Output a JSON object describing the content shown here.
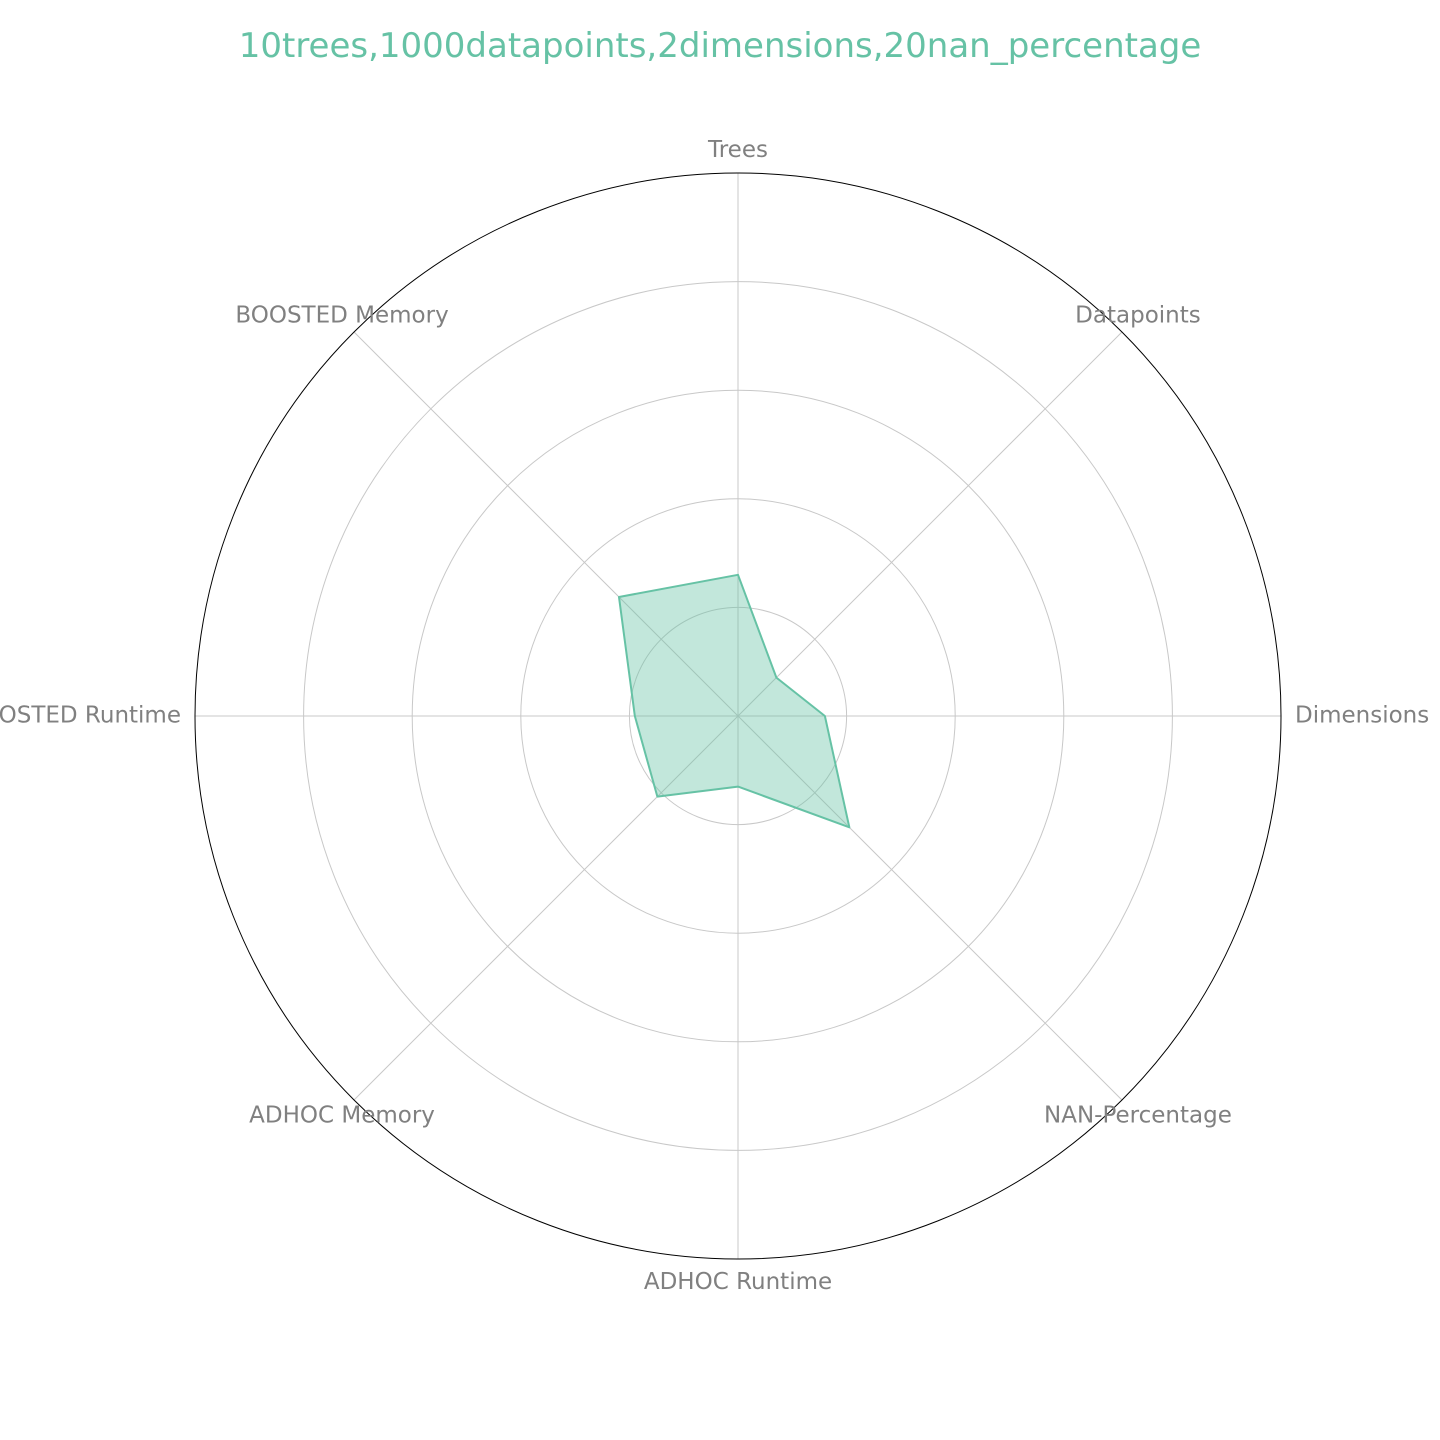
{
  "chart_data": {
    "type": "radar",
    "title": "10trees,1000datapoints,2dimensions,20nan_percentage",
    "color": "#66c2a5",
    "axes": [
      "Trees",
      "Datapoints",
      "Dimensions",
      "NAN-Percentage",
      "ADHOC Runtime",
      "ADHOC Memory",
      "BOOSTED Runtime",
      "BOOSTED Memory"
    ],
    "values": [
      0.26,
      0.1,
      0.16,
      0.29,
      0.13,
      0.21,
      0.19,
      0.31
    ],
    "rlim": [
      0,
      1
    ],
    "rgrid": [
      0.2,
      0.4,
      0.6,
      0.8
    ],
    "grid": true
  }
}
